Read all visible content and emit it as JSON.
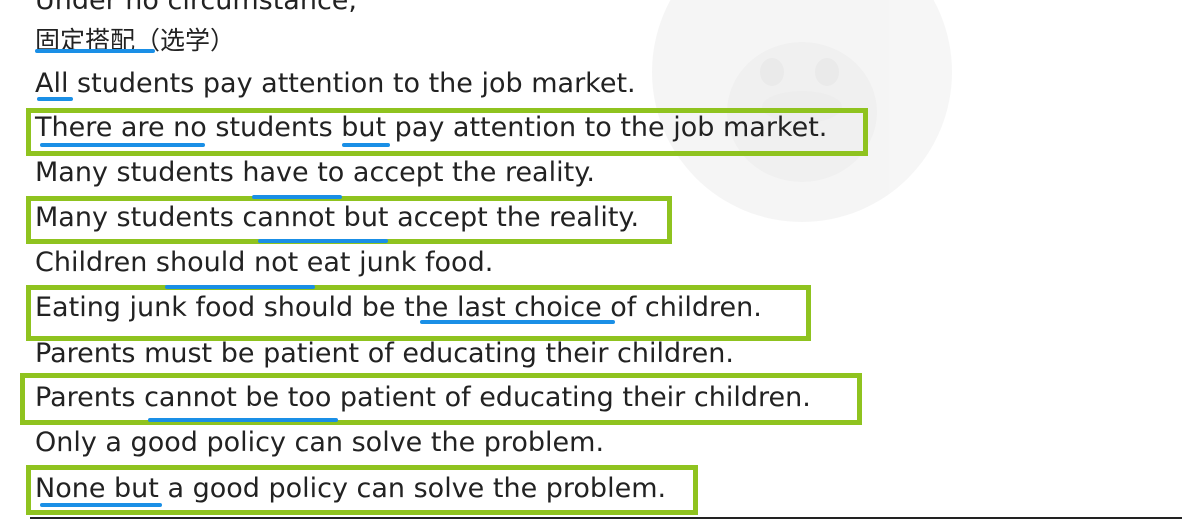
{
  "lines": [
    "Under no circumstance,",
    "固定搭配（选学）",
    "All students pay attention to the job market.",
    "There are no students but pay attention to the job market.",
    "Many students have to accept the reality.",
    "Many students cannot but accept the reality.",
    "Children should not eat junk food.",
    "Eating junk food should be the last choice of children.",
    "Parents must be patient of educating their children.",
    "Parents cannot be too patient of educating their children.",
    "Only a good policy can solve the problem.",
    "None but a good policy can solve the problem."
  ],
  "colors": {
    "highlight_box": "#8fc31f",
    "underline": "#1a8fe6",
    "text": "#222222"
  }
}
